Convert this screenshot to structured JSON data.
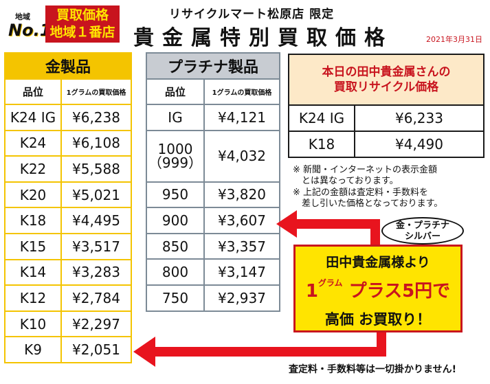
{
  "badge": {
    "region_small": "地域",
    "no1": "No.1",
    "line1": "買取価格",
    "line2": "地域１番店"
  },
  "store_name": "リサイクルマート松原店 限定",
  "title": "貴金属特別買取価格",
  "date": "2021年3月31日",
  "gold_table": {
    "header": "金製品",
    "col_grade": "品位",
    "col_price": "1グラムの買取価格",
    "rows": [
      {
        "grade": "K24 IG",
        "price": "¥6,238"
      },
      {
        "grade": "K24",
        "price": "¥6,108"
      },
      {
        "grade": "K22",
        "price": "¥5,588"
      },
      {
        "grade": "K20",
        "price": "¥5,021"
      },
      {
        "grade": "K18",
        "price": "¥4,495"
      },
      {
        "grade": "K15",
        "price": "¥3,517"
      },
      {
        "grade": "K14",
        "price": "¥3,283"
      },
      {
        "grade": "K12",
        "price": "¥2,784"
      },
      {
        "grade": "K10",
        "price": "¥2,297"
      },
      {
        "grade": "K9",
        "price": "¥2,051"
      }
    ]
  },
  "platinum_table": {
    "header": "プラチナ製品",
    "col_grade": "品位",
    "col_price": "1グラムの買取価格",
    "rows": [
      {
        "grade": "IG",
        "price": "¥4,121"
      },
      {
        "grade": "1000",
        "grade2": "（999）",
        "price": "¥4,032"
      },
      {
        "grade": "950",
        "price": "¥3,820"
      },
      {
        "grade": "900",
        "price": "¥3,607"
      },
      {
        "grade": "850",
        "price": "¥3,357"
      },
      {
        "grade": "800",
        "price": "¥3,147"
      },
      {
        "grade": "750",
        "price": "¥2,937"
      }
    ]
  },
  "tanaka": {
    "line1": "本日の田中貴金属さんの",
    "line2": "買取リサイクル価格",
    "rows": [
      {
        "grade": "K24 IG",
        "price": "¥6,233"
      },
      {
        "grade": "K18",
        "price": "¥4,490"
      }
    ]
  },
  "notes": [
    "※ 新聞・インターネットの表示金額",
    "　とは異なっております。",
    "※ 上記の金額は査定料・手数料を",
    "　差し引いた価格となっております。"
  ],
  "bubble": {
    "line1": "金・プラチナ",
    "line2": "シルバー"
  },
  "promo": {
    "line1": "田中貴金属様より",
    "gram_num": "1",
    "gram_unit": "グラム",
    "plus": "プラス5円で",
    "line3": "高価 お買取り！"
  },
  "footer": "査定料・手数料等は一切掛かりません!",
  "colors": {
    "gold": "#f4c400",
    "platinum": "#c8ccd2",
    "red": "#c8141e",
    "promo_bg": "#ffe400",
    "tanaka_bg": "#fde9c8"
  }
}
